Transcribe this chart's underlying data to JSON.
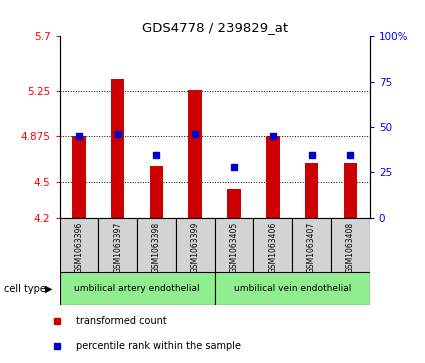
{
  "title": "GDS4778 / 239829_at",
  "samples": [
    "GSM1063396",
    "GSM1063397",
    "GSM1063398",
    "GSM1063399",
    "GSM1063405",
    "GSM1063406",
    "GSM1063407",
    "GSM1063408"
  ],
  "bar_values": [
    4.875,
    5.35,
    4.625,
    5.26,
    4.44,
    4.875,
    4.65,
    4.65
  ],
  "percentile_values": [
    4.875,
    4.89,
    4.72,
    4.895,
    4.62,
    4.875,
    4.72,
    4.72
  ],
  "bar_bottom": 4.2,
  "ylim_left": [
    4.2,
    5.7
  ],
  "ylim_right": [
    0,
    100
  ],
  "yticks_left": [
    4.2,
    4.5,
    4.875,
    5.25,
    5.7
  ],
  "ytick_labels_left": [
    "4.2",
    "4.5",
    "4.875",
    "5.25",
    "5.7"
  ],
  "yticks_right": [
    0,
    25,
    50,
    75,
    100
  ],
  "ytick_labels_right": [
    "0",
    "25",
    "50",
    "75",
    "100%"
  ],
  "grid_yticks": [
    4.5,
    4.875,
    5.25
  ],
  "bar_color": "#cc0000",
  "marker_color": "#0000cc",
  "cell_type_label": "cell type",
  "group_labels": [
    "umbilical artery endothelial",
    "umbilical vein endothelial"
  ],
  "group_color": "#90ee90",
  "sample_box_color": "#d3d3d3",
  "legend_items": [
    {
      "label": "transformed count",
      "color": "#cc0000"
    },
    {
      "label": "percentile rank within the sample",
      "color": "#0000cc"
    }
  ]
}
